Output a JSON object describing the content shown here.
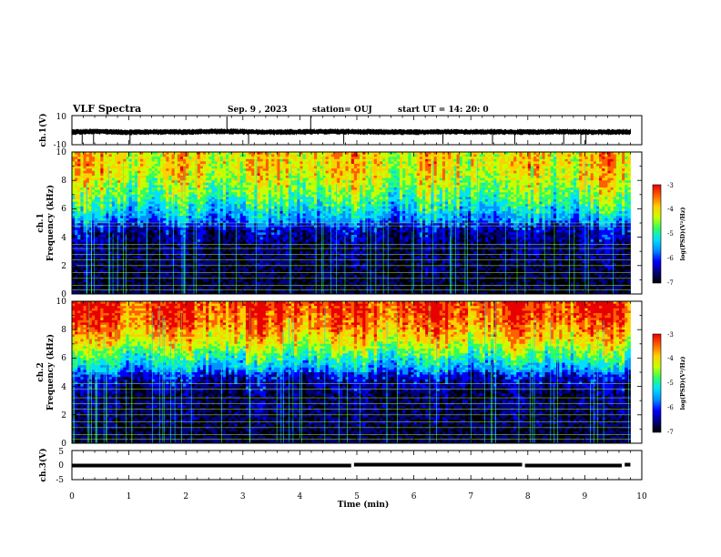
{
  "header": {
    "title": "VLF Spectra",
    "date": "Sep. 9 , 2023",
    "station": "station= OUJ",
    "start": "start  UT  =   14: 20: 0"
  },
  "colors": {
    "spectrogram_scale": [
      "#000000",
      "#00007a",
      "#0000ff",
      "#0090ff",
      "#00e0ff",
      "#30ff60",
      "#c8ff00",
      "#ffd000",
      "#ff6000",
      "#e80000"
    ],
    "trace": "#000000"
  },
  "chart_data": [
    {
      "type": "line",
      "name": "ch1-waveform",
      "ylabel": "ch.1(V)",
      "ylim": [
        -10,
        10
      ],
      "y_ticks": [
        "10",
        "-10"
      ],
      "x": [
        0,
        0.5,
        1,
        1.5,
        2,
        2.5,
        3,
        3.5,
        4,
        4.5,
        5,
        5.5,
        6,
        6.5,
        7,
        7.5,
        8,
        8.5,
        9,
        9.5,
        9.8
      ],
      "y": [
        0,
        0.3,
        -0.2,
        0.1,
        0,
        0.4,
        0.2,
        -0.1,
        0,
        0.3,
        0.1,
        0,
        -0.2,
        0.2,
        0,
        0.1,
        -0.1,
        0.2,
        0,
        -0.1,
        0
      ],
      "spikes_min": [
        0.18,
        0.38,
        1.02,
        2.72,
        3.1,
        4.19,
        4.77,
        6.51,
        7.38,
        7.77,
        8.63,
        8.93,
        9.02
      ],
      "spikes_dir": [
        -1,
        -1,
        -1,
        1,
        -1,
        1,
        -1,
        -1,
        -1,
        -1,
        -1,
        -1,
        -1
      ]
    },
    {
      "type": "heatmap",
      "name": "ch1-spectrogram",
      "xlim": [
        0,
        10
      ],
      "ylim": [
        0,
        10
      ],
      "x_ticks": [
        "0",
        "1",
        "2",
        "3",
        "4",
        "5",
        "6",
        "7",
        "8",
        "9",
        "10"
      ],
      "y_ticks": [
        "0",
        "2",
        "4",
        "6",
        "8",
        "10"
      ],
      "ylabel_line1": "ch.1",
      "ylabel_line2": "Frequency  (kHz)",
      "colorbar": {
        "label": "log(PSD)(V²/Hz)",
        "ticks": [
          "-3",
          "-4",
          "-5",
          "-6",
          "-7"
        ],
        "range": [
          -7,
          -3
        ]
      },
      "data_end_min": 9.8,
      "freq_khz": [
        0.5,
        1.5,
        2.5,
        3.5,
        4.5,
        5.5,
        6.5,
        7.5,
        8.5,
        9.5
      ],
      "log_psd_profile": [
        -6.6,
        -6.6,
        -6.5,
        -6.5,
        -6.0,
        -5.4,
        -4.9,
        -4.5,
        -4.2,
        -4.1
      ],
      "tonal_lines_khz": [
        0.3,
        0.6,
        1.1,
        1.5,
        2.0,
        2.4,
        2.8,
        3.2,
        3.5,
        4.8,
        5.0
      ],
      "quiet_band_khz": [
        4.0,
        5.0
      ]
    },
    {
      "type": "heatmap",
      "name": "ch2-spectrogram",
      "xlim": [
        0,
        10
      ],
      "ylim": [
        0,
        10
      ],
      "x_ticks": [
        "0",
        "1",
        "2",
        "3",
        "4",
        "5",
        "6",
        "7",
        "8",
        "9",
        "10"
      ],
      "y_ticks": [
        "0",
        "2",
        "4",
        "6",
        "8",
        "10"
      ],
      "ylabel_line1": "ch.2",
      "ylabel_line2": "Frequency  (kHz)",
      "colorbar": {
        "label": "log(PSD)(V²/Hz)",
        "ticks": [
          "-3",
          "-4",
          "-5",
          "-6",
          "-7"
        ],
        "range": [
          -7,
          -3
        ]
      },
      "data_end_min": 9.8,
      "freq_khz": [
        0.5,
        1.5,
        2.5,
        3.5,
        4.5,
        5.5,
        6.5,
        7.5,
        8.5,
        9.5
      ],
      "log_psd_profile": [
        -6.6,
        -6.5,
        -6.5,
        -6.3,
        -6.0,
        -5.3,
        -4.6,
        -4.0,
        -3.6,
        -3.4
      ],
      "tonal_lines_khz": [
        0.3,
        0.6,
        1.1,
        1.5,
        2.0,
        2.4,
        2.8,
        3.2,
        3.8,
        4.2
      ],
      "quiet_band_khz": [
        3.0,
        5.0
      ]
    },
    {
      "type": "line",
      "name": "ch3-trace",
      "ylabel": "ch.3(V)",
      "ylim": [
        -5,
        5
      ],
      "y_ticks": [
        "5",
        "0",
        "-5"
      ],
      "xlabel": "Time  (min)",
      "x_ticks": [
        "0",
        "1",
        "2",
        "3",
        "4",
        "5",
        "6",
        "7",
        "8",
        "9",
        "10"
      ],
      "x": [
        0,
        4.9,
        4.95,
        7.9,
        7.95,
        9.65,
        9.7,
        9.8
      ],
      "y": [
        0,
        0,
        0.3,
        0.3,
        0,
        0,
        0.3,
        0.3
      ]
    }
  ]
}
